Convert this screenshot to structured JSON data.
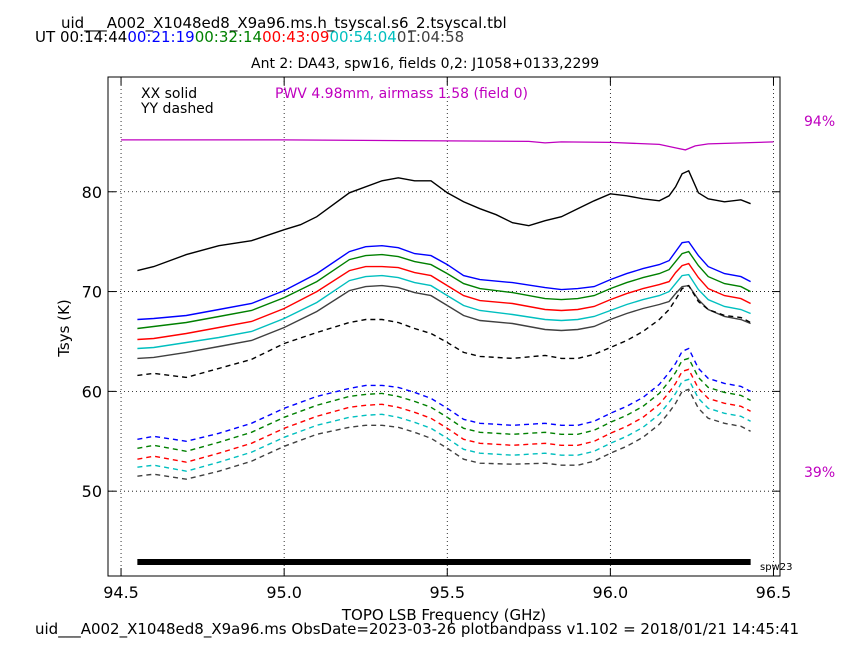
{
  "header": {
    "file_title": "uid___A002_X1048ed8_X9a96.ms.h_tsyscal.s6_2.tsyscal.tbl",
    "ut_label": "UT",
    "ut_times": [
      {
        "text": "00:14:44",
        "color": "#000000"
      },
      {
        "text": "00:21:19",
        "color": "#0000ff"
      },
      {
        "text": "00:32:14",
        "color": "#008000"
      },
      {
        "text": "00:43:09",
        "color": "#ff0000"
      },
      {
        "text": "00:54:04",
        "color": "#00bfbf"
      },
      {
        "text": "01:04:58",
        "color": "#404040"
      }
    ],
    "subtitle": "Ant 2: DA43,  spw16,  fields 0,2: J1058+0133,2299"
  },
  "footer": {
    "text": "uid___A002_X1048ed8_X9a96.ms  ObsDate=2023-03-26   plotbandpass v1.102 = 2018/01/21 14:45:41"
  },
  "chart_data": {
    "type": "line",
    "xlabel": "TOPO LSB Frequency (GHz)",
    "ylabel": "Tsys (K)",
    "xlim": [
      94.46,
      96.52
    ],
    "ylim": [
      41.5,
      91.5
    ],
    "xticks": [
      "94.5",
      "95.0",
      "95.5",
      "96.0",
      "96.5"
    ],
    "xtick_values": [
      94.5,
      95.0,
      95.5,
      96.0,
      96.5
    ],
    "yticks": [
      "50",
      "60",
      "70",
      "80"
    ],
    "ytick_values": [
      50,
      60,
      70,
      80
    ],
    "grid": true,
    "legend_text": [
      "XX solid",
      "YY dashed"
    ],
    "pwv_label": "PWV 4.98mm, airmass 1.58 (field 0)",
    "pwv_color": "#bf00bf",
    "transmission_labels": {
      "top": "94%",
      "bottom": "39%"
    },
    "spw_bar_label": "spw23",
    "spw_bar_range": [
      94.55,
      96.43
    ],
    "transmission_curve": {
      "color": "#bf00bf",
      "x": [
        94.5,
        95.0,
        95.5,
        95.75,
        95.8,
        95.85,
        96.0,
        96.15,
        96.2,
        96.23,
        96.26,
        96.3,
        96.5
      ],
      "y": [
        85.2,
        85.2,
        85.1,
        85.05,
        84.9,
        85.0,
        84.95,
        84.75,
        84.4,
        84.2,
        84.6,
        84.8,
        85.0
      ]
    },
    "series": [
      {
        "pol": "XX",
        "time_index": 0,
        "color": "#000000",
        "dashed": false,
        "x": [
          94.55,
          94.6,
          94.7,
          94.8,
          94.9,
          95.0,
          95.05,
          95.1,
          95.2,
          95.3,
          95.35,
          95.4,
          95.45,
          95.5,
          95.55,
          95.6,
          95.65,
          95.7,
          95.75,
          95.8,
          95.85,
          95.9,
          95.95,
          96.0,
          96.05,
          96.1,
          96.15,
          96.18,
          96.2,
          96.22,
          96.24,
          96.27,
          96.3,
          96.35,
          96.4,
          96.43
        ],
        "y": [
          72.1,
          72.5,
          73.7,
          74.6,
          75.1,
          76.2,
          76.7,
          77.5,
          79.9,
          81.1,
          81.4,
          81.1,
          81.1,
          79.9,
          79.0,
          78.3,
          77.7,
          76.9,
          76.6,
          77.1,
          77.5,
          78.3,
          79.1,
          79.8,
          79.6,
          79.3,
          79.1,
          79.6,
          80.5,
          81.8,
          82.1,
          79.9,
          79.3,
          79.0,
          79.2,
          78.8
        ]
      },
      {
        "pol": "XX",
        "time_index": 1,
        "color": "#0000ff",
        "dashed": false,
        "x": [
          94.55,
          94.6,
          94.7,
          94.8,
          94.9,
          95.0,
          95.1,
          95.2,
          95.25,
          95.3,
          95.35,
          95.4,
          95.45,
          95.5,
          95.55,
          95.6,
          95.7,
          95.8,
          95.85,
          95.9,
          95.95,
          96.0,
          96.05,
          96.1,
          96.15,
          96.18,
          96.2,
          96.22,
          96.24,
          96.27,
          96.3,
          96.35,
          96.4,
          96.43
        ],
        "y": [
          67.2,
          67.3,
          67.6,
          68.2,
          68.8,
          70.1,
          71.8,
          74.0,
          74.5,
          74.6,
          74.4,
          73.8,
          73.6,
          72.7,
          71.6,
          71.2,
          70.9,
          70.4,
          70.2,
          70.3,
          70.5,
          71.2,
          71.8,
          72.3,
          72.7,
          73.1,
          74.0,
          74.9,
          75.0,
          73.6,
          72.5,
          71.8,
          71.5,
          71.0
        ]
      },
      {
        "pol": "XX",
        "time_index": 2,
        "color": "#008000",
        "dashed": false,
        "x": [
          94.55,
          94.6,
          94.7,
          94.8,
          94.9,
          95.0,
          95.1,
          95.2,
          95.25,
          95.3,
          95.35,
          95.4,
          95.45,
          95.5,
          95.55,
          95.6,
          95.7,
          95.8,
          95.85,
          95.9,
          95.95,
          96.0,
          96.05,
          96.1,
          96.15,
          96.18,
          96.2,
          96.22,
          96.24,
          96.27,
          96.3,
          96.35,
          96.4,
          96.43
        ],
        "y": [
          66.3,
          66.5,
          66.9,
          67.5,
          68.1,
          69.4,
          71.0,
          73.2,
          73.6,
          73.7,
          73.5,
          73.0,
          72.7,
          71.8,
          70.8,
          70.3,
          69.9,
          69.3,
          69.2,
          69.3,
          69.6,
          70.3,
          70.9,
          71.4,
          71.8,
          72.2,
          73.0,
          73.8,
          74.0,
          72.6,
          71.5,
          70.8,
          70.5,
          70.0
        ]
      },
      {
        "pol": "XX",
        "time_index": 3,
        "color": "#ff0000",
        "dashed": false,
        "x": [
          94.55,
          94.6,
          94.7,
          94.8,
          94.9,
          95.0,
          95.1,
          95.2,
          95.25,
          95.3,
          95.35,
          95.4,
          95.45,
          95.5,
          95.55,
          95.6,
          95.7,
          95.8,
          95.85,
          95.9,
          95.95,
          96.0,
          96.05,
          96.1,
          96.15,
          96.18,
          96.2,
          96.22,
          96.24,
          96.27,
          96.3,
          96.35,
          96.4,
          96.43
        ],
        "y": [
          65.2,
          65.3,
          65.8,
          66.4,
          67.0,
          68.3,
          70.0,
          72.1,
          72.5,
          72.5,
          72.4,
          71.9,
          71.6,
          70.6,
          69.6,
          69.1,
          68.8,
          68.2,
          68.1,
          68.2,
          68.5,
          69.2,
          69.8,
          70.3,
          70.7,
          71.0,
          71.9,
          72.6,
          72.8,
          71.4,
          70.3,
          69.6,
          69.3,
          68.8
        ]
      },
      {
        "pol": "XX",
        "time_index": 4,
        "color": "#00bfbf",
        "dashed": false,
        "x": [
          94.55,
          94.6,
          94.7,
          94.8,
          94.9,
          95.0,
          95.1,
          95.2,
          95.25,
          95.3,
          95.35,
          95.4,
          95.45,
          95.5,
          95.55,
          95.6,
          95.7,
          95.8,
          95.85,
          95.9,
          95.95,
          96.0,
          96.05,
          96.1,
          96.15,
          96.18,
          96.2,
          96.22,
          96.24,
          96.27,
          96.3,
          96.35,
          96.4,
          96.43
        ],
        "y": [
          64.3,
          64.4,
          64.9,
          65.4,
          66.0,
          67.3,
          68.9,
          71.1,
          71.5,
          71.6,
          71.4,
          70.9,
          70.6,
          69.6,
          68.6,
          68.1,
          67.7,
          67.2,
          67.1,
          67.2,
          67.5,
          68.1,
          68.7,
          69.2,
          69.6,
          70.0,
          70.8,
          71.6,
          71.7,
          70.2,
          69.2,
          68.5,
          68.2,
          67.8
        ]
      },
      {
        "pol": "XX",
        "time_index": 5,
        "color": "#404040",
        "dashed": false,
        "x": [
          94.55,
          94.6,
          94.7,
          94.8,
          94.9,
          95.0,
          95.1,
          95.2,
          95.25,
          95.3,
          95.35,
          95.4,
          95.45,
          95.5,
          95.55,
          95.6,
          95.7,
          95.8,
          95.85,
          95.9,
          95.95,
          96.0,
          96.05,
          96.1,
          96.15,
          96.18,
          96.2,
          96.22,
          96.24,
          96.27,
          96.3,
          96.35,
          96.4,
          96.43
        ],
        "y": [
          63.3,
          63.4,
          63.9,
          64.5,
          65.1,
          66.4,
          68.0,
          70.1,
          70.5,
          70.6,
          70.4,
          69.9,
          69.6,
          68.6,
          67.6,
          67.1,
          66.8,
          66.2,
          66.1,
          66.2,
          66.5,
          67.2,
          67.8,
          68.3,
          68.7,
          69.0,
          69.8,
          70.5,
          70.6,
          69.2,
          68.2,
          67.5,
          67.2,
          66.8
        ]
      },
      {
        "pol": "YY",
        "time_index": 0,
        "color": "#000000",
        "dashed": true,
        "x": [
          94.55,
          94.6,
          94.7,
          94.8,
          94.9,
          95.0,
          95.1,
          95.2,
          95.25,
          95.3,
          95.35,
          95.4,
          95.45,
          95.5,
          95.55,
          95.6,
          95.7,
          95.8,
          95.85,
          95.9,
          95.95,
          96.0,
          96.05,
          96.1,
          96.15,
          96.18,
          96.2,
          96.22,
          96.24,
          96.27,
          96.3,
          96.35,
          96.4,
          96.43
        ],
        "y": [
          61.6,
          61.8,
          61.4,
          62.3,
          63.2,
          64.8,
          65.9,
          66.9,
          67.2,
          67.2,
          66.9,
          66.3,
          65.8,
          64.9,
          63.9,
          63.5,
          63.3,
          63.6,
          63.3,
          63.3,
          63.7,
          64.4,
          65.1,
          66.0,
          67.2,
          68.2,
          69.2,
          70.3,
          70.6,
          69.0,
          68.2,
          67.6,
          67.4,
          66.9
        ]
      },
      {
        "pol": "YY",
        "time_index": 1,
        "color": "#0000ff",
        "dashed": true,
        "x": [
          94.55,
          94.6,
          94.7,
          94.8,
          94.9,
          95.0,
          95.1,
          95.2,
          95.25,
          95.3,
          95.35,
          95.4,
          95.45,
          95.5,
          95.55,
          95.6,
          95.7,
          95.8,
          95.85,
          95.9,
          95.95,
          96.0,
          96.05,
          96.1,
          96.15,
          96.18,
          96.2,
          96.22,
          96.24,
          96.27,
          96.3,
          96.35,
          96.4,
          96.43
        ],
        "y": [
          55.2,
          55.5,
          55.0,
          55.8,
          56.8,
          58.3,
          59.5,
          60.3,
          60.6,
          60.6,
          60.4,
          59.9,
          59.3,
          58.3,
          57.2,
          56.8,
          56.6,
          56.8,
          56.6,
          56.6,
          57.0,
          57.8,
          58.5,
          59.4,
          60.7,
          61.9,
          62.8,
          64.0,
          64.3,
          62.3,
          61.3,
          60.8,
          60.5,
          60.0
        ]
      },
      {
        "pol": "YY",
        "time_index": 2,
        "color": "#008000",
        "dashed": true,
        "x": [
          94.55,
          94.6,
          94.7,
          94.8,
          94.9,
          95.0,
          95.1,
          95.2,
          95.25,
          95.3,
          95.35,
          95.4,
          95.45,
          95.5,
          95.55,
          95.6,
          95.7,
          95.8,
          95.85,
          95.9,
          95.95,
          96.0,
          96.05,
          96.1,
          96.15,
          96.18,
          96.2,
          96.22,
          96.24,
          96.27,
          96.3,
          96.35,
          96.4,
          96.43
        ],
        "y": [
          54.3,
          54.6,
          54.0,
          54.9,
          55.9,
          57.4,
          58.6,
          59.5,
          59.7,
          59.8,
          59.5,
          59.0,
          58.4,
          57.4,
          56.3,
          55.9,
          55.7,
          55.9,
          55.7,
          55.7,
          56.1,
          56.9,
          57.6,
          58.5,
          59.8,
          61.0,
          61.9,
          63.1,
          63.3,
          61.4,
          60.4,
          59.9,
          59.6,
          59.1
        ]
      },
      {
        "pol": "YY",
        "time_index": 3,
        "color": "#ff0000",
        "dashed": true,
        "x": [
          94.55,
          94.6,
          94.7,
          94.8,
          94.9,
          95.0,
          95.1,
          95.2,
          95.25,
          95.3,
          95.35,
          95.4,
          95.45,
          95.5,
          95.55,
          95.6,
          95.7,
          95.8,
          95.85,
          95.9,
          95.95,
          96.0,
          96.05,
          96.1,
          96.15,
          96.18,
          96.2,
          96.22,
          96.24,
          96.27,
          96.3,
          96.35,
          96.4,
          96.43
        ],
        "y": [
          53.2,
          53.5,
          52.9,
          53.8,
          54.8,
          56.3,
          57.5,
          58.4,
          58.6,
          58.7,
          58.4,
          57.9,
          57.3,
          56.3,
          55.2,
          54.8,
          54.6,
          54.8,
          54.6,
          54.6,
          55.0,
          55.8,
          56.5,
          57.4,
          58.7,
          59.9,
          60.8,
          62.0,
          62.2,
          60.3,
          59.3,
          58.8,
          58.5,
          58.0
        ]
      },
      {
        "pol": "YY",
        "time_index": 4,
        "color": "#00bfbf",
        "dashed": true,
        "x": [
          94.55,
          94.6,
          94.7,
          94.8,
          94.9,
          95.0,
          95.1,
          95.2,
          95.25,
          95.3,
          95.35,
          95.4,
          95.45,
          95.5,
          95.55,
          95.6,
          95.7,
          95.8,
          95.85,
          95.9,
          95.95,
          96.0,
          96.05,
          96.1,
          96.15,
          96.18,
          96.2,
          96.22,
          96.24,
          96.27,
          96.3,
          96.35,
          96.4,
          96.43
        ],
        "y": [
          52.4,
          52.6,
          52.0,
          52.9,
          53.9,
          55.4,
          56.6,
          57.4,
          57.6,
          57.7,
          57.4,
          56.9,
          56.3,
          55.3,
          54.2,
          53.8,
          53.6,
          53.8,
          53.6,
          53.6,
          54.0,
          54.8,
          55.5,
          56.4,
          57.7,
          58.9,
          59.8,
          61.0,
          61.2,
          59.3,
          58.3,
          57.8,
          57.5,
          57.0
        ]
      },
      {
        "pol": "YY",
        "time_index": 5,
        "color": "#404040",
        "dashed": true,
        "x": [
          94.55,
          94.6,
          94.7,
          94.8,
          94.9,
          95.0,
          95.1,
          95.2,
          95.25,
          95.3,
          95.35,
          95.4,
          95.45,
          95.5,
          95.55,
          95.6,
          95.7,
          95.8,
          95.85,
          95.9,
          95.95,
          96.0,
          96.05,
          96.1,
          96.15,
          96.18,
          96.2,
          96.22,
          96.24,
          96.27,
          96.3,
          96.35,
          96.4,
          96.43
        ],
        "y": [
          51.5,
          51.7,
          51.2,
          52.0,
          53.0,
          54.5,
          55.7,
          56.4,
          56.6,
          56.6,
          56.4,
          55.9,
          55.3,
          54.3,
          53.2,
          52.8,
          52.7,
          52.8,
          52.6,
          52.6,
          53.0,
          53.8,
          54.5,
          55.4,
          56.7,
          57.9,
          58.8,
          60.0,
          60.2,
          58.3,
          57.3,
          56.8,
          56.5,
          56.0
        ]
      }
    ]
  }
}
